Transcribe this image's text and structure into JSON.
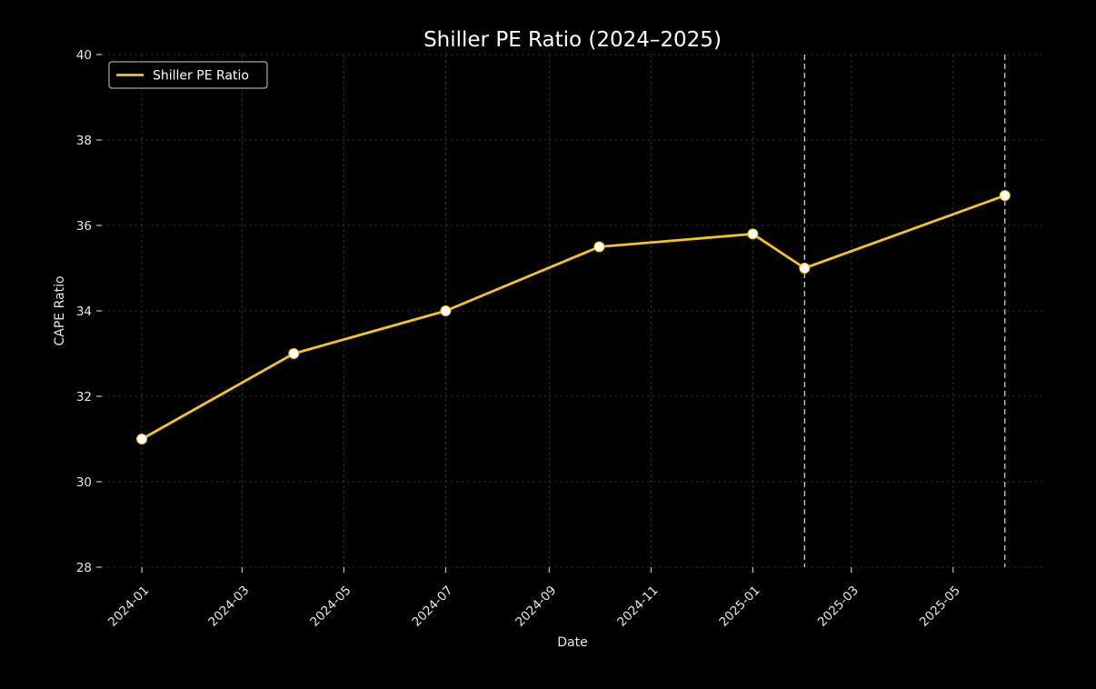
{
  "chart_data": {
    "type": "line",
    "title": "Shiller PE Ratio (2024–2025)",
    "xlabel": "Date",
    "ylabel": "CAPE Ratio",
    "x_scale": "date",
    "xlim": [
      "2023-12-08",
      "2025-06-24"
    ],
    "ylim": [
      28,
      40
    ],
    "yticks": [
      28,
      30,
      32,
      34,
      36,
      38,
      40
    ],
    "xticks": [
      {
        "date": "2024-01-01",
        "label": "2024-01"
      },
      {
        "date": "2024-03-01",
        "label": "2024-03"
      },
      {
        "date": "2024-05-01",
        "label": "2024-05"
      },
      {
        "date": "2024-07-01",
        "label": "2024-07"
      },
      {
        "date": "2024-09-01",
        "label": "2024-09"
      },
      {
        "date": "2024-11-01",
        "label": "2024-11"
      },
      {
        "date": "2025-01-01",
        "label": "2025-01"
      },
      {
        "date": "2025-03-01",
        "label": "2025-03"
      },
      {
        "date": "2025-05-01",
        "label": "2025-05"
      }
    ],
    "grid": true,
    "legend_position": "top-left",
    "series": [
      {
        "name": "Shiller PE Ratio",
        "color": "#f5c518",
        "marker_color": "#ffffff",
        "points": [
          {
            "x": "2024-01-01",
            "y": 31.0
          },
          {
            "x": "2024-04-01",
            "y": 33.0
          },
          {
            "x": "2024-07-01",
            "y": 34.0
          },
          {
            "x": "2024-10-01",
            "y": 35.5
          },
          {
            "x": "2025-01-01",
            "y": 35.8
          },
          {
            "x": "2025-02-01",
            "y": 35.0
          },
          {
            "x": "2025-06-01",
            "y": 36.7
          }
        ]
      }
    ],
    "vertical_lines": [
      {
        "x": "2025-02-01",
        "color": "#cccccc",
        "style": "dashed"
      },
      {
        "x": "2025-06-01",
        "color": "#cccccc",
        "style": "dashed"
      }
    ]
  }
}
